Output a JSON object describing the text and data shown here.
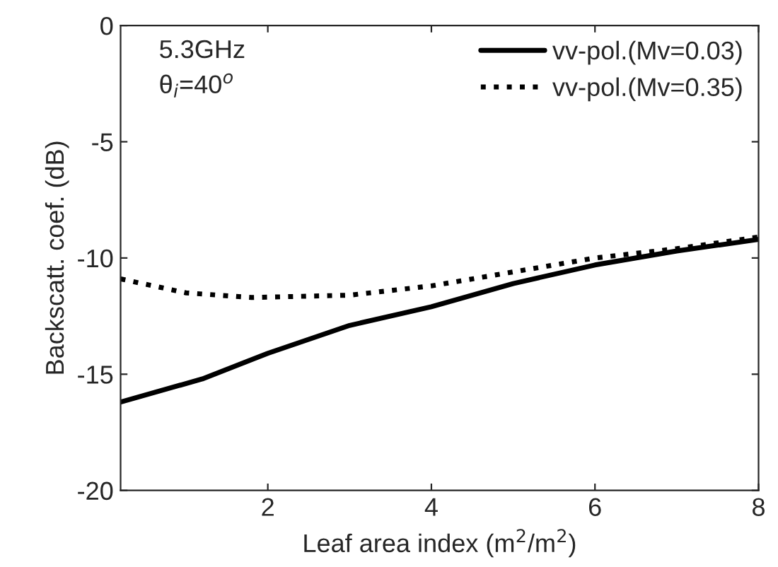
{
  "chart_data": {
    "type": "line",
    "xlabel": "Leaf area index (m$^{2}$/m$^{2}$)",
    "ylabel": "Backscatt. coef. (dB)",
    "xlim": [
      0.2,
      8
    ],
    "xticks": [
      2,
      4,
      6,
      8
    ],
    "ylim": [
      -20,
      0
    ],
    "yticks": [
      -20,
      -15,
      -10,
      -5,
      0
    ],
    "grid": false,
    "legend": "top right",
    "annotations": [
      "5.3GHz",
      "θ$_{i}$=40$^{o}$"
    ],
    "series": [
      {
        "name": "vv-pol.(Mv=0.03)",
        "color": "#000000",
        "line_style": "solid",
        "x": [
          0.2,
          1.2,
          2,
          2.5,
          3,
          4,
          5,
          6,
          7,
          8
        ],
        "values": [
          -16.2,
          -15.2,
          -14.1,
          -13.5,
          -12.9,
          -12.1,
          -11.1,
          -10.3,
          -9.7,
          -9.2
        ]
      },
      {
        "name": "vv-pol.(Mv=0.35)",
        "color": "#000000",
        "line_style": "dotted",
        "x": [
          0.2,
          1,
          1.8,
          3,
          4,
          5,
          6,
          7,
          8
        ],
        "values": [
          -10.9,
          -11.5,
          -11.7,
          -11.6,
          -11.2,
          -10.6,
          -10.0,
          -9.6,
          -9.1
        ]
      }
    ]
  }
}
